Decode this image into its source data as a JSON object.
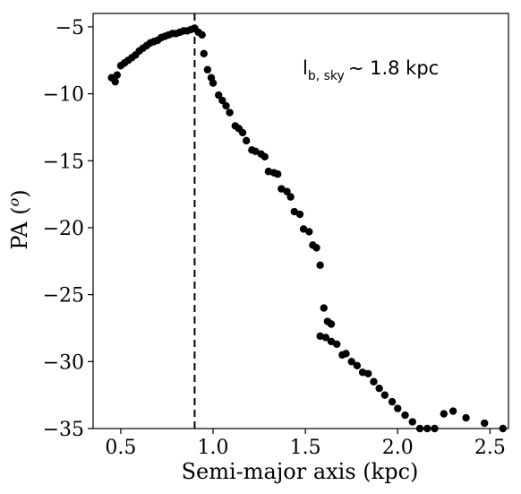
{
  "chart_data": {
    "type": "scatter",
    "xlabel": "Semi-major axis (kpc)",
    "ylabel": "PA (",
    "ylabel_sup": "o",
    "ylabel_close": ")",
    "xlim": [
      0.35,
      2.6
    ],
    "ylim": [
      -35,
      -4
    ],
    "xticks": [
      0.5,
      1.0,
      1.5,
      2.0,
      2.5
    ],
    "xtick_labels": [
      "0.5",
      "1.0",
      "1.5",
      "2.0",
      "2.5"
    ],
    "yticks": [
      -5,
      -10,
      -15,
      -20,
      -25,
      -30,
      -35
    ],
    "ytick_labels": [
      "−5",
      "−10",
      "−15",
      "−20",
      "−25",
      "−30",
      "−35"
    ],
    "vline": {
      "x": 0.9,
      "style": "dashed"
    },
    "annotation": {
      "main": "l",
      "sub": "b, sky",
      "rest": "∼ 1.8 kpc"
    },
    "marker_color": "#000000",
    "x": [
      0.45,
      0.47,
      0.48,
      0.5,
      0.52,
      0.54,
      0.56,
      0.58,
      0.6,
      0.62,
      0.64,
      0.66,
      0.68,
      0.7,
      0.72,
      0.74,
      0.76,
      0.78,
      0.8,
      0.82,
      0.84,
      0.86,
      0.88,
      0.9,
      0.92,
      0.94,
      0.95,
      0.97,
      0.99,
      1.0,
      1.03,
      1.05,
      1.07,
      1.09,
      1.12,
      1.14,
      1.16,
      1.18,
      1.21,
      1.23,
      1.26,
      1.28,
      1.3,
      1.33,
      1.35,
      1.37,
      1.4,
      1.42,
      1.44,
      1.47,
      1.49,
      1.52,
      1.54,
      1.56,
      1.58,
      1.6,
      1.62,
      1.64,
      1.58,
      1.61,
      1.64,
      1.67,
      1.7,
      1.72,
      1.75,
      1.78,
      1.81,
      1.84,
      1.87,
      1.9,
      1.93,
      1.97,
      2.0,
      2.04,
      2.08,
      2.12,
      2.16,
      2.2,
      2.25,
      2.3,
      2.37,
      2.47,
      2.57
    ],
    "y": [
      -8.8,
      -9.1,
      -8.6,
      -7.9,
      -7.7,
      -7.5,
      -7.3,
      -7.1,
      -6.8,
      -6.6,
      -6.4,
      -6.2,
      -6.1,
      -6.0,
      -5.8,
      -5.7,
      -5.6,
      -5.5,
      -5.5,
      -5.4,
      -5.3,
      -5.3,
      -5.2,
      -5.1,
      -5.4,
      -5.6,
      -7.0,
      -8.2,
      -8.8,
      -9.2,
      -10.1,
      -10.5,
      -10.9,
      -11.4,
      -12.4,
      -12.6,
      -12.9,
      -13.5,
      -14.2,
      -14.3,
      -14.5,
      -14.7,
      -15.8,
      -15.9,
      -16.0,
      -17.1,
      -17.3,
      -17.7,
      -18.8,
      -19.0,
      -20.1,
      -20.3,
      -21.3,
      -21.5,
      -22.8,
      -26.0,
      -27.0,
      -27.2,
      -28.1,
      -28.2,
      -28.5,
      -28.7,
      -29.5,
      -29.4,
      -30.0,
      -30.3,
      -30.8,
      -30.9,
      -31.5,
      -32.0,
      -32.5,
      -33.0,
      -33.5,
      -34.0,
      -34.5,
      -35.0,
      -35.0,
      -35.0,
      -33.9,
      -33.7,
      -34.2,
      -34.6,
      -35.0
    ]
  }
}
